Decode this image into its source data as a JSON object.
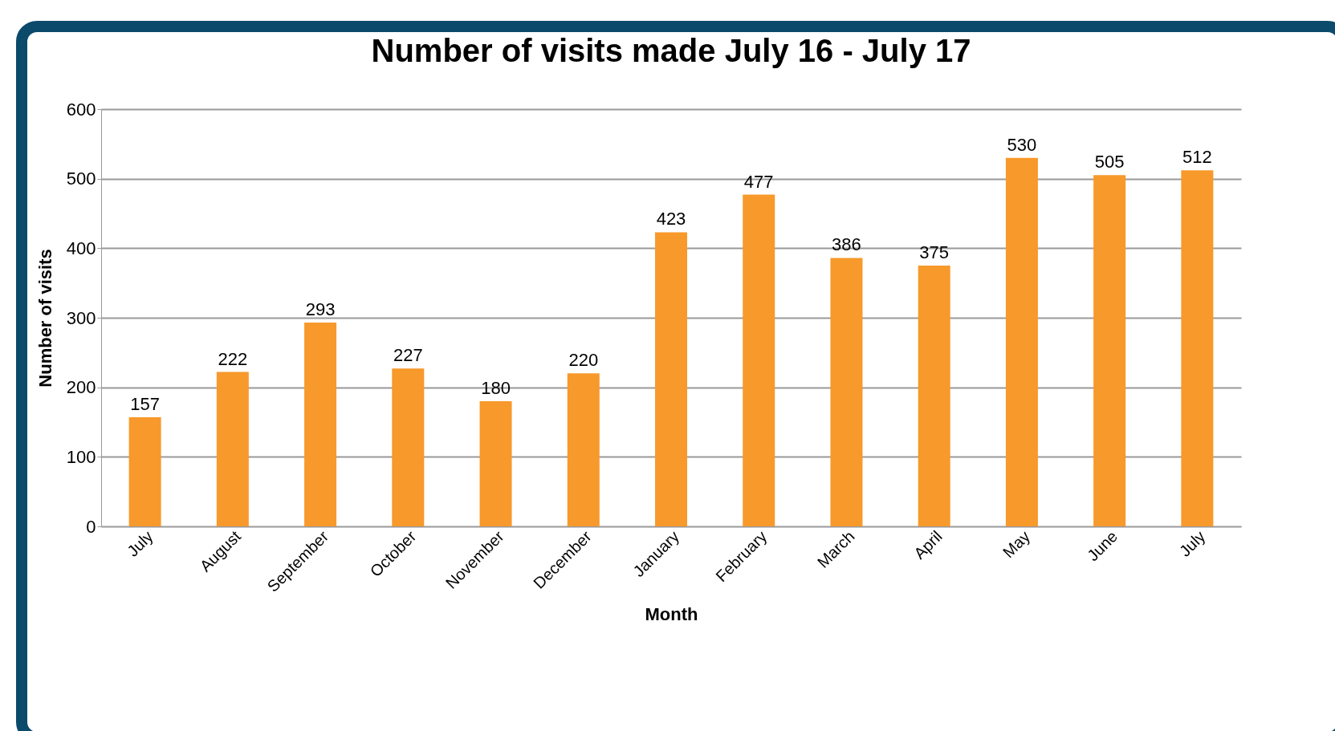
{
  "chart_data": {
    "type": "bar",
    "title": "Number of visits made July 16 - July 17",
    "xlabel": "Month",
    "ylabel": "Number of visits",
    "categories": [
      "July",
      "August",
      "September",
      "October",
      "November",
      "December",
      "January",
      "February",
      "March",
      "April",
      "May",
      "June",
      "July"
    ],
    "values": [
      157,
      222,
      293,
      227,
      180,
      220,
      423,
      477,
      386,
      375,
      530,
      505,
      512
    ],
    "color": "#f7992b",
    "ylim": [
      0,
      600
    ],
    "yticks": [
      0,
      100,
      200,
      300,
      400,
      500,
      600
    ],
    "grid": "y",
    "data_labels": true
  }
}
